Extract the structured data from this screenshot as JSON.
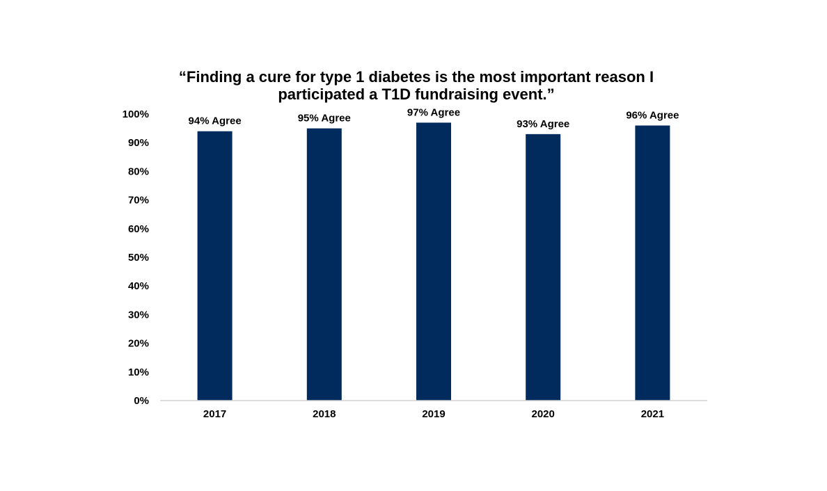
{
  "chart_data": {
    "type": "bar",
    "title_lines": [
      "“Finding a cure for type 1 diabetes is the most important reason I",
      "participated a T1D fundraising event.”"
    ],
    "categories": [
      "2017",
      "2018",
      "2019",
      "2020",
      "2021"
    ],
    "values": [
      94,
      95,
      97,
      93,
      96
    ],
    "data_labels": [
      "94% Agree",
      "95% Agree",
      "97% Agree",
      "93% Agree",
      "96% Agree"
    ],
    "y_ticks": [
      "0%",
      "10%",
      "20%",
      "30%",
      "40%",
      "50%",
      "60%",
      "70%",
      "80%",
      "90%",
      "100%"
    ],
    "ylim": [
      0,
      100
    ],
    "xlabel": "",
    "ylabel": "",
    "grid": false,
    "legend": "none",
    "bar_color": "#002b5c"
  }
}
